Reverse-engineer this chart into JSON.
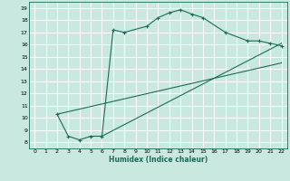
{
  "xlabel": "Humidex (Indice chaleur)",
  "bg_color": "#c8e8e0",
  "grid_color": "#b0d8d0",
  "line_color": "#1a6b5a",
  "xlim": [
    -0.5,
    22.5
  ],
  "ylim": [
    7.5,
    19.5
  ],
  "xticks": [
    0,
    1,
    2,
    3,
    4,
    5,
    6,
    7,
    8,
    9,
    10,
    11,
    12,
    13,
    14,
    15,
    16,
    17,
    18,
    19,
    20,
    21,
    22
  ],
  "yticks": [
    8,
    9,
    10,
    11,
    12,
    13,
    14,
    15,
    16,
    17,
    18,
    19
  ],
  "curve_x": [
    2,
    3,
    4,
    5,
    6,
    7,
    8,
    10,
    11,
    12,
    13,
    14,
    15,
    17,
    19,
    20,
    21,
    22
  ],
  "curve_y": [
    10.3,
    8.5,
    8.2,
    8.5,
    8.5,
    17.2,
    17.0,
    17.5,
    18.2,
    18.6,
    18.85,
    18.5,
    18.2,
    17.0,
    16.3,
    16.3,
    16.1,
    15.9
  ],
  "line1_x": [
    2,
    22
  ],
  "line1_y": [
    10.3,
    14.5
  ],
  "line2_x": [
    6,
    22
  ],
  "line2_y": [
    8.5,
    16.1
  ]
}
